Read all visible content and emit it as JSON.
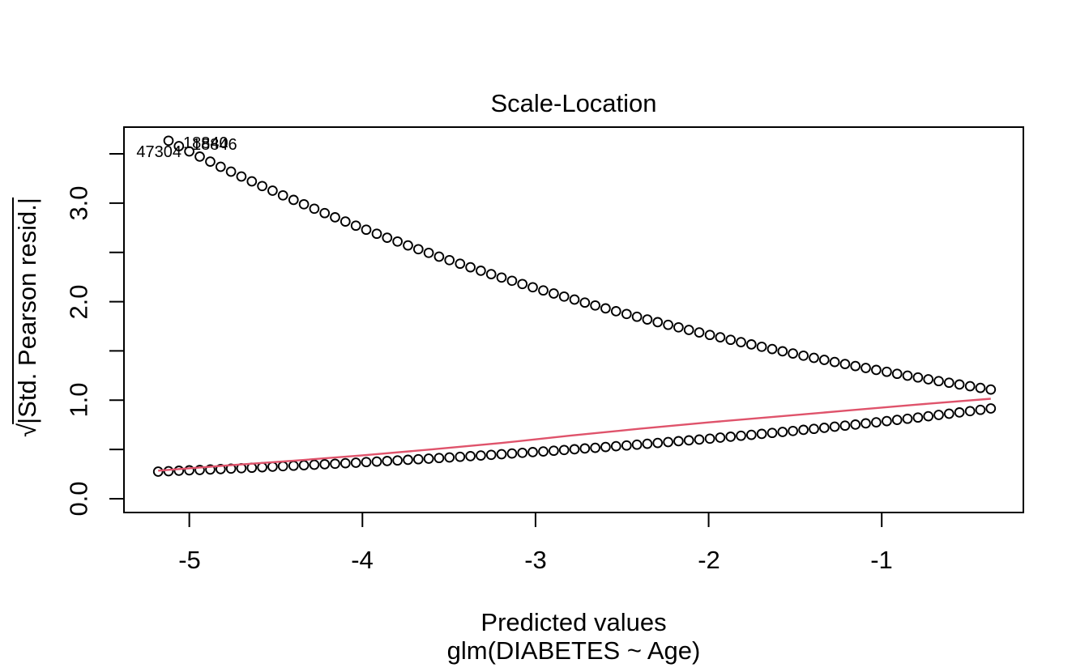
{
  "page": {
    "background": "#ffffff"
  },
  "chart_data": {
    "type": "scatter",
    "title": "Scale-Location",
    "xlabel_line1": "Predicted values",
    "xlabel_line2": "glm(DIABETES ~ Age)",
    "ylabel_sqrt": "√",
    "ylabel_radicand": "|Std. Pearson resid.|",
    "xlim": [
      -5.38,
      -0.18
    ],
    "ylim": [
      -0.14,
      3.77
    ],
    "grid": false,
    "legend": "none",
    "x_tick_values": [
      -5,
      -4,
      -3,
      -2,
      -1
    ],
    "x_tick_labels": [
      "-5",
      "-4",
      "-3",
      "-2",
      "-1"
    ],
    "y_tick_values": [
      0,
      0.5,
      1,
      1.5,
      2,
      2.5,
      3,
      3.5
    ],
    "y_tick_labeled_values": [
      0,
      1,
      2,
      3
    ],
    "y_tick_labels": [
      "0.0",
      "1.0",
      "2.0",
      "3.0"
    ],
    "point_style": {
      "marker": "open-circle",
      "color": "#000000"
    },
    "smooth_line_color": "#DF536B",
    "series": [
      {
        "name": "upper-branch-residuals",
        "x": [
          -5.12,
          -5.06,
          -5.0,
          -4.94,
          -4.879,
          -4.819,
          -4.759,
          -4.699,
          -4.639,
          -4.579,
          -4.519,
          -4.459,
          -4.398,
          -4.338,
          -4.278,
          -4.218,
          -4.158,
          -4.098,
          -4.038,
          -3.978,
          -3.917,
          -3.857,
          -3.797,
          -3.737,
          -3.677,
          -3.617,
          -3.557,
          -3.497,
          -3.436,
          -3.376,
          -3.316,
          -3.256,
          -3.196,
          -3.136,
          -3.076,
          -3.016,
          -2.955,
          -2.895,
          -2.835,
          -2.775,
          -2.715,
          -2.655,
          -2.595,
          -2.535,
          -2.474,
          -2.414,
          -2.354,
          -2.294,
          -2.234,
          -2.174,
          -2.114,
          -2.054,
          -1.993,
          -1.933,
          -1.873,
          -1.813,
          -1.753,
          -1.693,
          -1.633,
          -1.573,
          -1.513,
          -1.452,
          -1.392,
          -1.332,
          -1.272,
          -1.212,
          -1.152,
          -1.092,
          -1.032,
          -0.971,
          -0.911,
          -0.851,
          -0.791,
          -0.731,
          -0.671,
          -0.611,
          -0.551,
          -0.49,
          -0.43,
          -0.37
        ],
        "y": [
          3.633,
          3.578,
          3.525,
          3.472,
          3.421,
          3.369,
          3.319,
          3.27,
          3.221,
          3.173,
          3.126,
          3.079,
          3.033,
          2.988,
          2.943,
          2.899,
          2.856,
          2.813,
          2.771,
          2.73,
          2.689,
          2.649,
          2.61,
          2.571,
          2.532,
          2.495,
          2.457,
          2.421,
          2.385,
          2.349,
          2.314,
          2.279,
          2.245,
          2.212,
          2.179,
          2.146,
          2.114,
          2.083,
          2.052,
          2.021,
          1.991,
          1.961,
          1.932,
          1.903,
          1.875,
          1.847,
          1.819,
          1.792,
          1.765,
          1.739,
          1.713,
          1.688,
          1.662,
          1.638,
          1.613,
          1.589,
          1.566,
          1.542,
          1.519,
          1.496,
          1.474,
          1.452,
          1.43,
          1.409,
          1.388,
          1.367,
          1.347,
          1.327,
          1.307,
          1.288,
          1.268,
          1.249,
          1.231,
          1.212,
          1.194,
          1.177,
          1.159,
          1.142,
          1.125,
          1.108
        ]
      },
      {
        "name": "lower-branch-residuals",
        "x": [
          -5.18,
          -5.12,
          -5.06,
          -5.0,
          -4.94,
          -4.879,
          -4.819,
          -4.759,
          -4.699,
          -4.639,
          -4.579,
          -4.519,
          -4.459,
          -4.398,
          -4.338,
          -4.278,
          -4.218,
          -4.158,
          -4.098,
          -4.038,
          -3.978,
          -3.917,
          -3.857,
          -3.797,
          -3.737,
          -3.677,
          -3.617,
          -3.557,
          -3.497,
          -3.436,
          -3.376,
          -3.316,
          -3.256,
          -3.196,
          -3.136,
          -3.076,
          -3.016,
          -2.955,
          -2.895,
          -2.835,
          -2.775,
          -2.715,
          -2.655,
          -2.595,
          -2.535,
          -2.474,
          -2.414,
          -2.354,
          -2.294,
          -2.234,
          -2.174,
          -2.114,
          -2.054,
          -1.993,
          -1.933,
          -1.873,
          -1.813,
          -1.753,
          -1.693,
          -1.633,
          -1.573,
          -1.513,
          -1.452,
          -1.392,
          -1.332,
          -1.272,
          -1.212,
          -1.152,
          -1.092,
          -1.032,
          -0.971,
          -0.911,
          -0.851,
          -0.791,
          -0.731,
          -0.671,
          -0.611,
          -0.551,
          -0.49,
          -0.43,
          -0.37
        ],
        "y": [
          0.275,
          0.279,
          0.284,
          0.288,
          0.292,
          0.297,
          0.301,
          0.306,
          0.31,
          0.315,
          0.32,
          0.325,
          0.33,
          0.335,
          0.34,
          0.345,
          0.35,
          0.355,
          0.361,
          0.366,
          0.372,
          0.377,
          0.383,
          0.389,
          0.395,
          0.401,
          0.407,
          0.413,
          0.419,
          0.426,
          0.432,
          0.439,
          0.445,
          0.452,
          0.459,
          0.466,
          0.473,
          0.48,
          0.487,
          0.495,
          0.502,
          0.51,
          0.517,
          0.525,
          0.533,
          0.541,
          0.549,
          0.558,
          0.566,
          0.575,
          0.584,
          0.592,
          0.601,
          0.61,
          0.62,
          0.629,
          0.639,
          0.648,
          0.658,
          0.668,
          0.678,
          0.688,
          0.699,
          0.709,
          0.72,
          0.731,
          0.742,
          0.753,
          0.765,
          0.776,
          0.788,
          0.8,
          0.812,
          0.824,
          0.837,
          0.85,
          0.863,
          0.876,
          0.889,
          0.902,
          0.916
        ]
      }
    ],
    "smooth_line": {
      "x": [
        -5.18,
        -4.8,
        -4.4,
        -4.0,
        -3.6,
        -3.2,
        -2.8,
        -2.4,
        -2.0,
        -1.6,
        -1.2,
        -0.8,
        -0.37
      ],
      "y": [
        0.285,
        0.335,
        0.385,
        0.44,
        0.5,
        0.565,
        0.64,
        0.71,
        0.775,
        0.835,
        0.895,
        0.955,
        1.015
      ]
    },
    "labeled_points": [
      {
        "label": "47304",
        "x": -5.0,
        "y": 3.525
      },
      {
        "label": "18840",
        "x": -5.12,
        "y": 3.633
      },
      {
        "label": "18846",
        "x": -5.06,
        "y": 3.578
      }
    ]
  }
}
